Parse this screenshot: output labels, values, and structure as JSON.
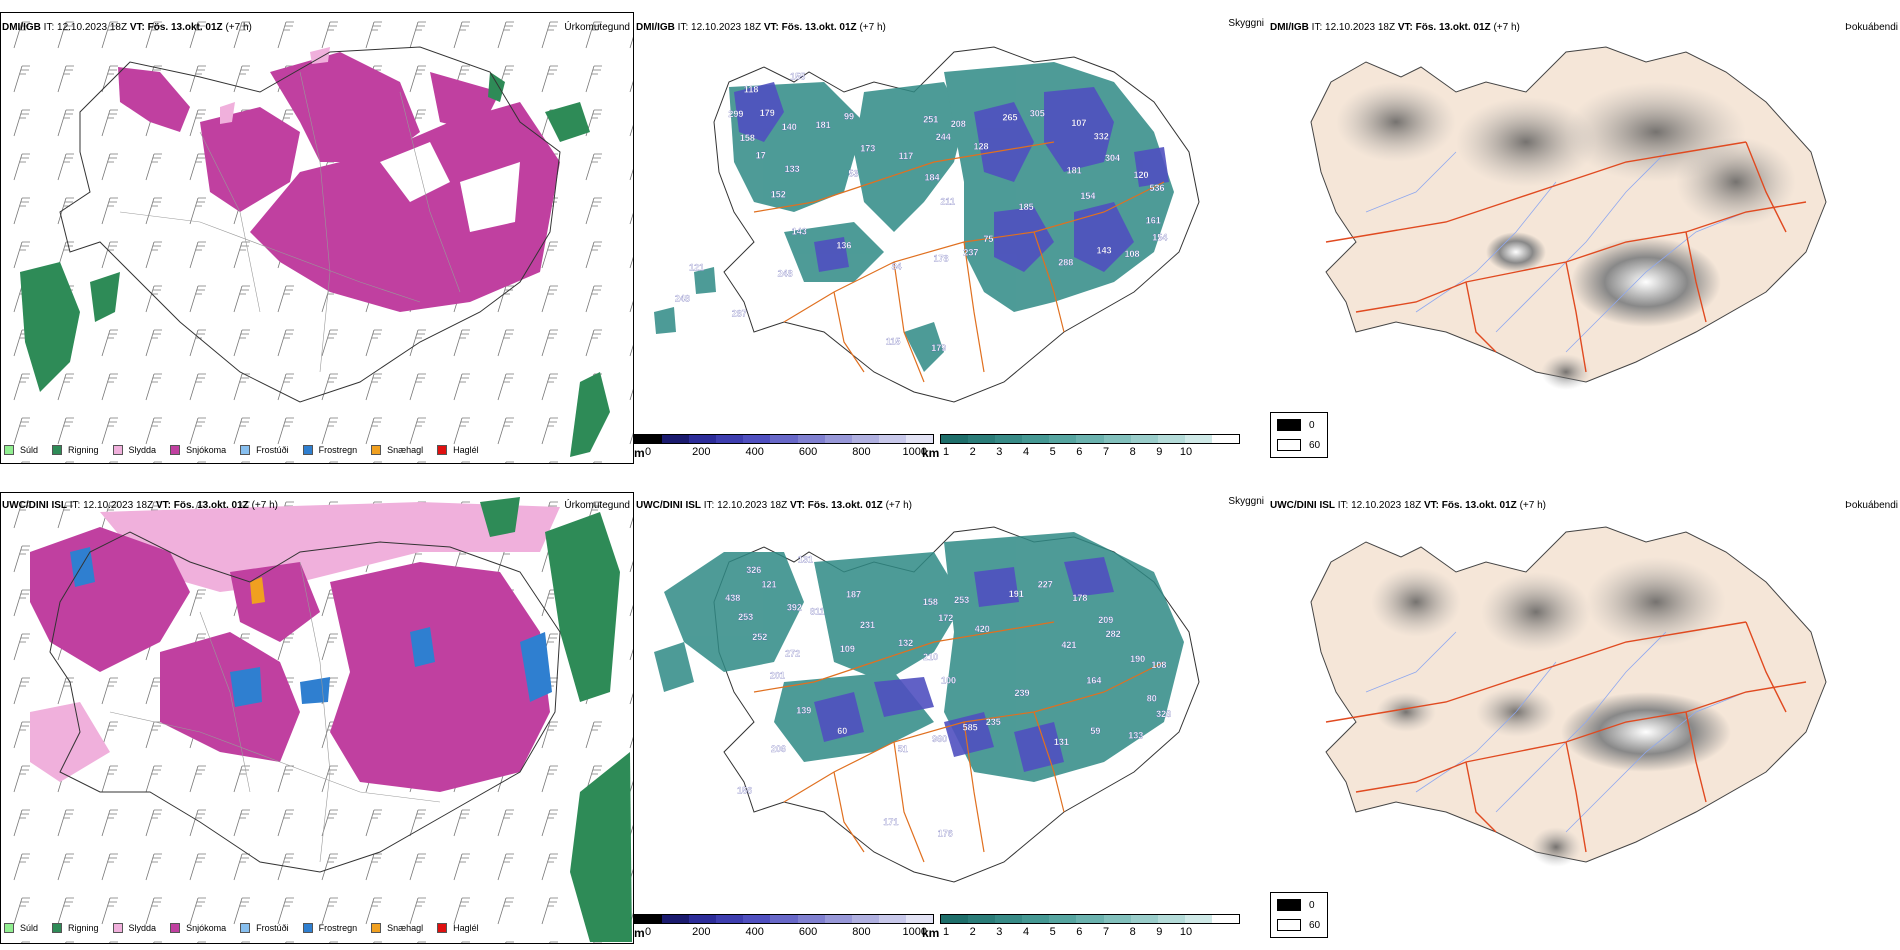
{
  "rows": [
    {
      "model": "DMI/IGB",
      "it_label": "IT:",
      "init_time": "12.10.2023 18Z",
      "vt_label": "VT:",
      "valid_time": "Fös. 13.okt. 01Z",
      "lead": "(+7 h)"
    },
    {
      "model": "UWC/DINI ISL",
      "it_label": "IT:",
      "init_time": "12.10.2023 18Z",
      "vt_label": "VT:",
      "valid_time": "Fös. 13.okt. 01Z",
      "lead": "(+7 h)"
    }
  ],
  "titles": {
    "precip_type": "Úrkomutegund",
    "visibility": "Skyggni",
    "fog": "Þokuábendi"
  },
  "precip_legend": [
    {
      "label": "Súld",
      "color": "#90ee90"
    },
    {
      "label": "Rigning",
      "color": "#2e8b57"
    },
    {
      "label": "Slydda",
      "color": "#f0b0dc"
    },
    {
      "label": "Snjókoma",
      "color": "#c040a0"
    },
    {
      "label": "Frostúði",
      "color": "#87bfef"
    },
    {
      "label": "Frostregn",
      "color": "#2f7fd0"
    },
    {
      "label": "Snæhagl",
      "color": "#f0a020"
    },
    {
      "label": "Haglél",
      "color": "#e01010"
    }
  ],
  "colors": {
    "snow": "#c040a0",
    "sleet": "#f0b0dc",
    "rain": "#2e8b57",
    "freezing_rain": "#2f7fd0",
    "land": "#f5e6d8",
    "roads": "#e07020",
    "rivers": "#8fa8ef",
    "cloud_teal": "#2f8a85",
    "cloud_blue": "#5050c0"
  },
  "ceiling_scale": {
    "unit": "m",
    "ticks": [
      "0",
      "200",
      "400",
      "600",
      "800",
      "1000"
    ],
    "colors": [
      "#000000",
      "#1a1a6e",
      "#2c2c99",
      "#3e3eaf",
      "#5050c0",
      "#6868c8",
      "#8080d0",
      "#9898d8",
      "#b0b0e0",
      "#c8c8ea",
      "#e2e2f4"
    ]
  },
  "vis_scale": {
    "unit": "km",
    "ticks": [
      "1",
      "2",
      "3",
      "4",
      "5",
      "6",
      "7",
      "8",
      "9",
      "10"
    ],
    "colors": [
      "#1e6e6a",
      "#2a7c78",
      "#378a86",
      "#459893",
      "#56a5a0",
      "#6bb2ae",
      "#82c0bc",
      "#9acdca",
      "#b4dbd8",
      "#cfe9e7",
      "#ffffff"
    ]
  },
  "fog_legend": [
    {
      "label": "0",
      "color": "#000000"
    },
    {
      "label": "60",
      "color": "#ffffff"
    }
  ],
  "labels_top": [
    "118",
    "155",
    "299",
    "179",
    "158",
    "140",
    "181",
    "99",
    "17",
    "133",
    "152",
    "53",
    "173",
    "117",
    "251",
    "244",
    "208",
    "128",
    "184",
    "211",
    "265",
    "305",
    "107",
    "332",
    "304",
    "181",
    "154",
    "120",
    "536",
    "161",
    "185",
    "75",
    "237",
    "178",
    "84",
    "136",
    "143",
    "248",
    "288",
    "143",
    "108",
    "154",
    "179",
    "115",
    "287",
    "121",
    "248"
  ],
  "labels_bottom": [
    "326",
    "131",
    "438",
    "121",
    "253",
    "392",
    "811",
    "187",
    "252",
    "272",
    "201",
    "109",
    "231",
    "132",
    "158",
    "172",
    "253",
    "420",
    "210",
    "100",
    "191",
    "227",
    "178",
    "209",
    "282",
    "421",
    "164",
    "190",
    "108",
    "80",
    "239",
    "235",
    "585",
    "960",
    "51",
    "60",
    "139",
    "206",
    "131",
    "59",
    "133",
    "328",
    "176",
    "171",
    "156"
  ]
}
